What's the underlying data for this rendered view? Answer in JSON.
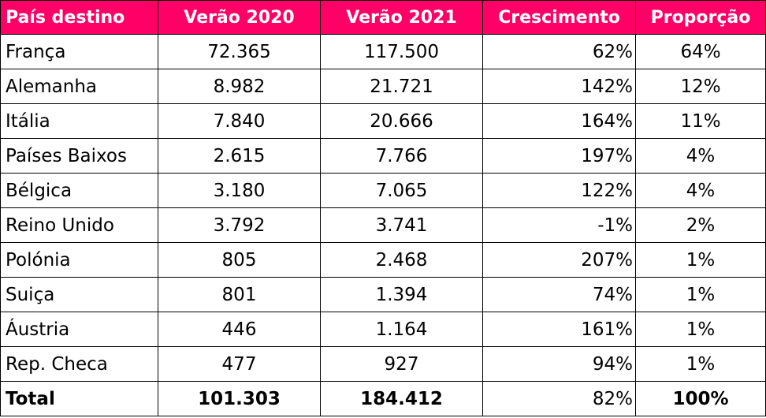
{
  "headers": [
    "País destino",
    "Verão 2020",
    "Verão 2021",
    "Crescimento",
    "Proporção"
  ],
  "rows": [
    [
      "França",
      "72.365",
      "117.500",
      "62%",
      "64%"
    ],
    [
      "Alemanha",
      "8.982",
      "21.721",
      "142%",
      "12%"
    ],
    [
      "Itália",
      "7.840",
      "20.666",
      "164%",
      "11%"
    ],
    [
      "Países Baixos",
      "2.615",
      "7.766",
      "197%",
      "4%"
    ],
    [
      "Bélgica",
      "3.180",
      "7.065",
      "122%",
      "4%"
    ],
    [
      "Reino Unido",
      "3.792",
      "3.741",
      "-1%",
      "2%"
    ],
    [
      "Polónia",
      "805",
      "2.468",
      "207%",
      "1%"
    ],
    [
      "Suiça",
      "801",
      "1.394",
      "74%",
      "1%"
    ],
    [
      "Áustria",
      "446",
      "1.164",
      "161%",
      "1%"
    ],
    [
      "Rep. Checa",
      "477",
      "927",
      "94%",
      "1%"
    ]
  ],
  "total": [
    "Total",
    "101.303",
    "184.412",
    "82%",
    "100%"
  ],
  "colors": {
    "header_bg": "#ff0066",
    "header_text": "#ffffff",
    "border": "#000000"
  }
}
